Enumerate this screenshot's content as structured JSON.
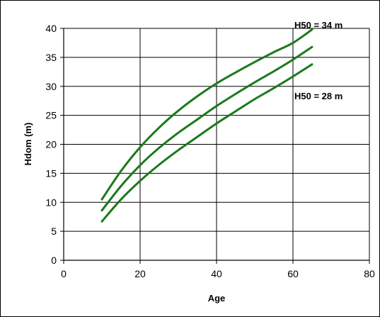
{
  "chart_data": {
    "type": "line",
    "xlabel": "Age",
    "ylabel": "Hdom (m)",
    "xlim": [
      0,
      80
    ],
    "ylim": [
      0,
      40
    ],
    "xticks": [
      "0",
      "20",
      "40",
      "60",
      "80"
    ],
    "yticks": [
      "0",
      "5",
      "10",
      "15",
      "20",
      "25",
      "30",
      "35",
      "40"
    ],
    "grid": true,
    "legend": "none",
    "line_color": "#1a7a1a",
    "series": [
      {
        "x": [
          10,
          15,
          20,
          25,
          30,
          35,
          40,
          45,
          50,
          55,
          60,
          65
        ],
        "y": [
          10.5,
          15.4,
          19.5,
          22.9,
          25.8,
          28.3,
          30.5,
          32.4,
          34.2,
          35.9,
          37.5,
          39.8
        ]
      },
      {
        "x": [
          10,
          15,
          20,
          25,
          30,
          35,
          40,
          45,
          50,
          55,
          60,
          65
        ],
        "y": [
          8.6,
          12.8,
          16.4,
          19.4,
          22.0,
          24.3,
          26.6,
          28.7,
          30.7,
          32.6,
          34.6,
          36.8
        ]
      },
      {
        "x": [
          10,
          15,
          20,
          25,
          30,
          35,
          40,
          45,
          50,
          55,
          60,
          65
        ],
        "y": [
          6.7,
          10.5,
          13.7,
          16.5,
          19.0,
          21.3,
          23.6,
          25.7,
          27.8,
          29.7,
          31.7,
          33.8
        ]
      }
    ],
    "annotations": [
      {
        "text": "H50 = 34 m",
        "series_index": 0
      },
      {
        "text": "H50 = 28 m",
        "series_index": 2
      }
    ]
  }
}
